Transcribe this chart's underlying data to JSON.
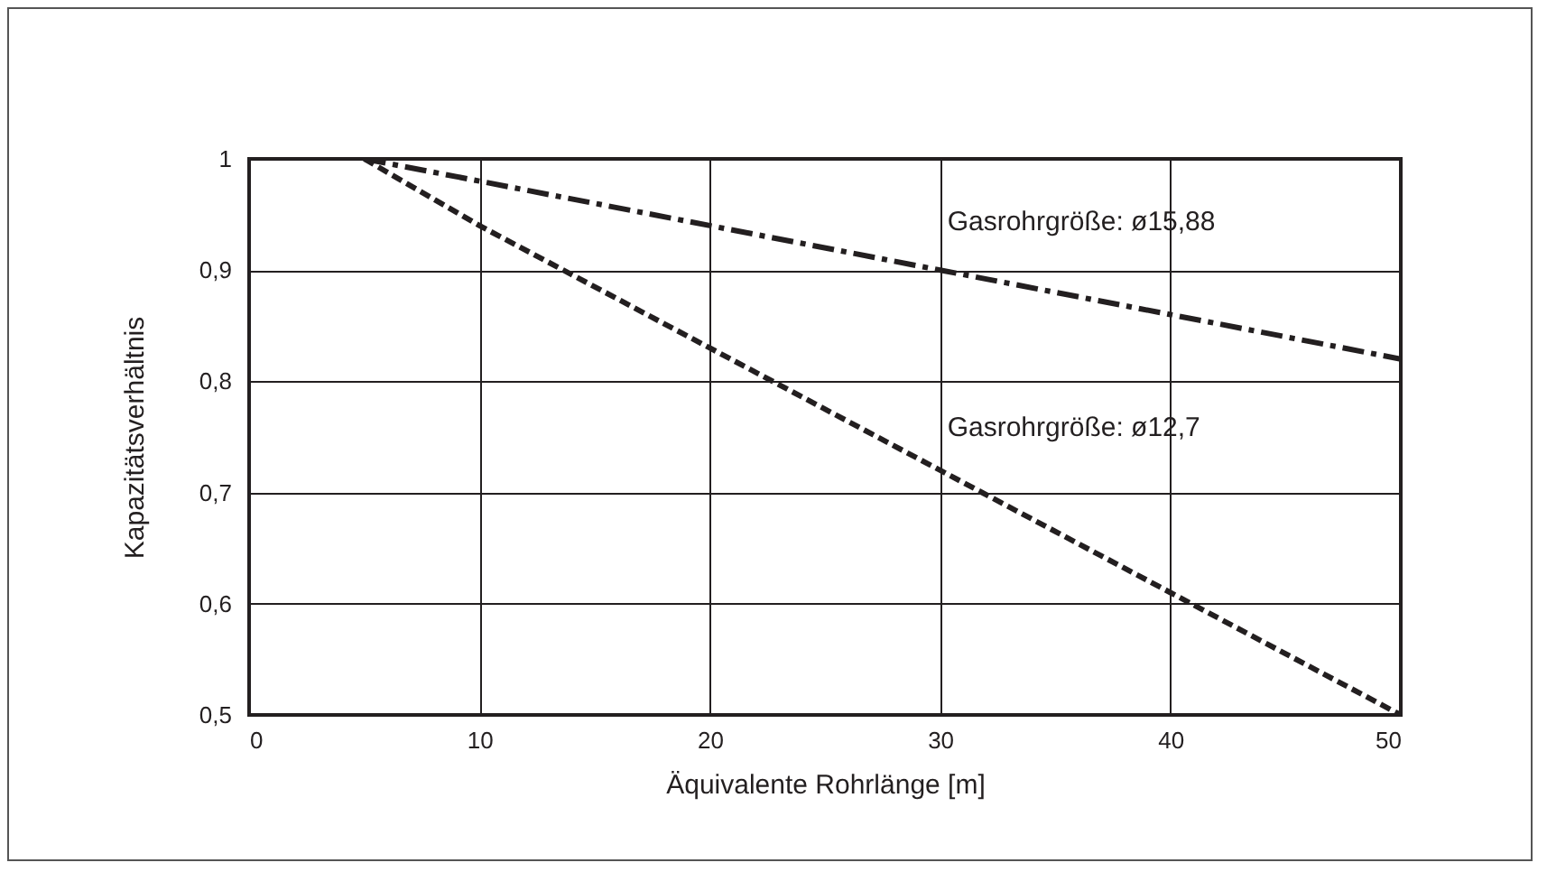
{
  "chart_data": {
    "type": "line",
    "xlabel": "Äquivalente Rohrlänge [m]",
    "ylabel": "Kapazitätsverhältnis",
    "xlim": [
      0,
      50
    ],
    "xticks": [
      0,
      10,
      20,
      30,
      40,
      50
    ],
    "ylim": [
      0.5,
      1
    ],
    "yticks": [
      {
        "value": 0.5,
        "label": "0,5"
      },
      {
        "value": 0.6,
        "label": "0,6"
      },
      {
        "value": 0.7,
        "label": "0,7"
      },
      {
        "value": 0.8,
        "label": "0,8"
      },
      {
        "value": 0.9,
        "label": "0,9"
      },
      {
        "value": 1,
        "label": "1"
      }
    ],
    "grid": true,
    "marker": "none",
    "series": [
      {
        "name": "Gasrohrgröße: ø15,88",
        "color": "#231f20",
        "line_style": "dashdot",
        "x": [
          5,
          10,
          20,
          30,
          40,
          50
        ],
        "values": [
          1,
          0.98,
          0.94,
          0.9,
          0.86,
          0.82
        ]
      },
      {
        "name": "Gasrohrgröße: ø12,7",
        "color": "#231f20",
        "line_style": "dashed",
        "x": [
          5,
          10,
          20,
          30,
          40,
          50
        ],
        "values": [
          1,
          0.94,
          0.83,
          0.72,
          0.61,
          0.5
        ]
      }
    ]
  }
}
